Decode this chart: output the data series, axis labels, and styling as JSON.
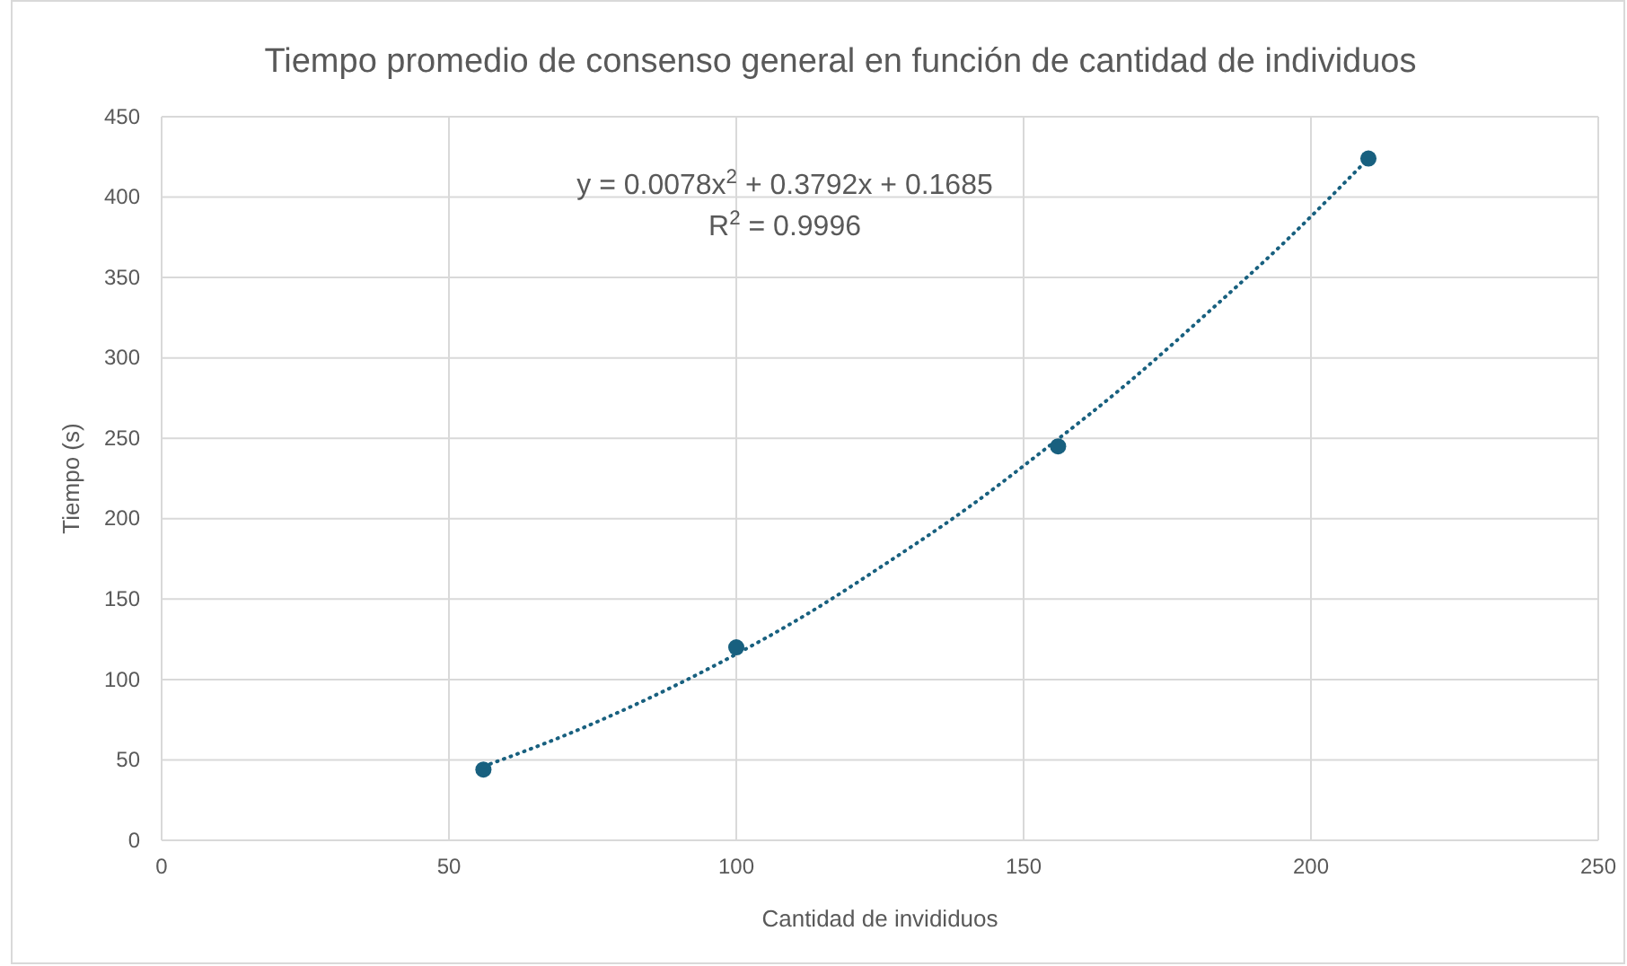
{
  "chart_data": {
    "type": "scatter",
    "title": "Tiempo promedio de consenso general en función de cantidad de individuos",
    "xlabel": "Cantidad de invididuos",
    "ylabel": "Tiempo (s)",
    "x": [
      56,
      100,
      156,
      210
    ],
    "series": [
      {
        "color": "#18607f",
        "marker": "circle",
        "values": [
          44,
          120,
          245,
          424
        ]
      },
      {
        "type": "line",
        "color": "#18607f",
        "line_style": "dotted",
        "x": [
          56,
          70,
          84,
          98,
          112,
          126,
          140,
          154,
          168,
          182,
          196,
          210
        ],
        "values": [
          46,
          65,
          87,
          112,
          140,
          172,
          206,
          244,
          284,
          328,
          374,
          424
        ]
      }
    ],
    "annotations": [
      "y = 0.0078x$^{2}$ + 0.3792x + 0.1685",
      "R$^{2}$ = 0.9996"
    ],
    "xlim": [
      0,
      250
    ],
    "xticks": [
      0,
      50,
      100,
      150,
      200,
      250
    ],
    "ylim": [
      0,
      450
    ],
    "yticks": [
      0,
      50,
      100,
      150,
      200,
      250,
      300,
      350,
      400,
      450
    ],
    "grid": true
  }
}
